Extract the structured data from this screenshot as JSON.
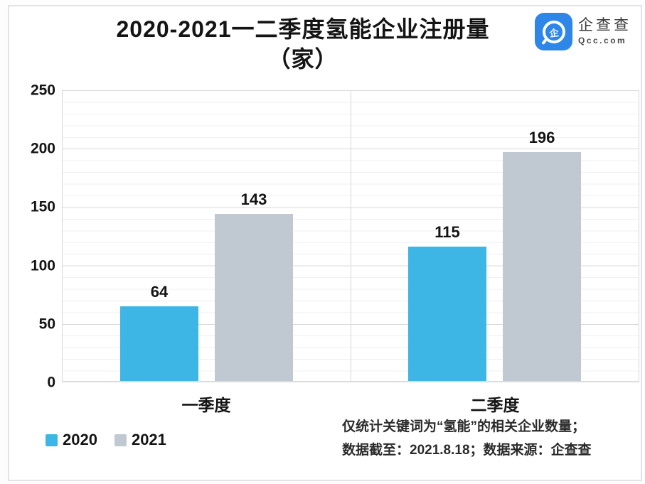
{
  "title": {
    "line1": "2020-2021一二季度氢能企业注册量",
    "line2": "（家）"
  },
  "logo": {
    "icon_glyph": "企",
    "name": "企查查",
    "domain": "Qcc.com",
    "brand_color": "#2e86e8"
  },
  "chart_data": {
    "type": "bar",
    "categories": [
      "一季度",
      "二季度"
    ],
    "series": [
      {
        "name": "2020",
        "color": "#3eb6e5",
        "values": [
          64,
          115
        ]
      },
      {
        "name": "2021",
        "color": "#c0c9d1",
        "values": [
          143,
          196
        ]
      }
    ],
    "ylabel": "",
    "xlabel": "",
    "ylim": [
      0,
      250
    ],
    "yticks": [
      0,
      50,
      100,
      150,
      200,
      250
    ],
    "grid": "horizontal major every 50, minor every 10",
    "legend_position": "bottom-left"
  },
  "footnote": {
    "line1": "仅统计关键词为“氢能”的相关企业数量；",
    "line2": "数据截至：2021.8.18；数据来源：企查查"
  }
}
